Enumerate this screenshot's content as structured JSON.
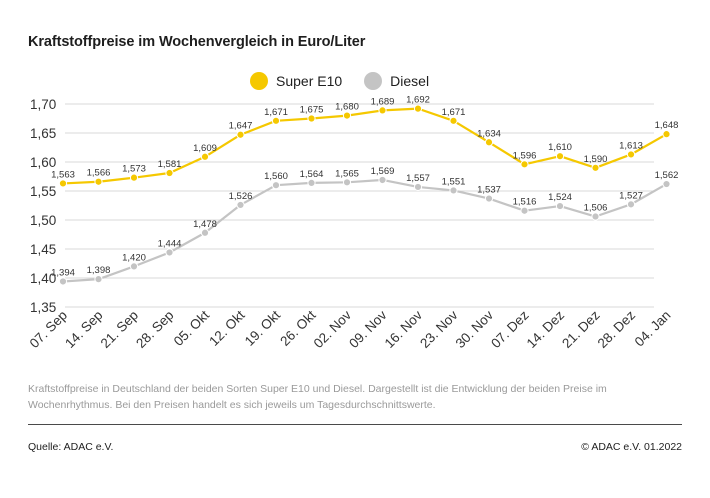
{
  "chart_data": {
    "type": "line",
    "title": "Kraftstoffpreise im Wochenvergleich in Euro/Liter",
    "categories": [
      "07. Sep",
      "14. Sep",
      "21. Sep",
      "28. Sep",
      "05. Okt",
      "12. Okt",
      "19. Okt",
      "26. Okt",
      "02. Nov",
      "09. Nov",
      "16. Nov",
      "23. Nov",
      "30. Nov",
      "07. Dez",
      "14. Dez",
      "21. Dez",
      "28. Dez",
      "04. Jan"
    ],
    "series": [
      {
        "name": "Super E10",
        "color": "#f5c800",
        "values": [
          1.563,
          1.566,
          1.573,
          1.581,
          1.609,
          1.647,
          1.671,
          1.675,
          1.68,
          1.689,
          1.692,
          1.671,
          1.634,
          1.596,
          1.61,
          1.59,
          1.613,
          1.648
        ],
        "labels": [
          "1,563",
          "1,566",
          "1,573",
          "1,581",
          "1,609",
          "1,647",
          "1,671",
          "1,675",
          "1,680",
          "1,689",
          "1,692",
          "1,671",
          "1,634",
          "1,596",
          "1,610",
          "1,590",
          "1,613",
          "1,648"
        ]
      },
      {
        "name": "Diesel",
        "color": "#c4c4c4",
        "values": [
          1.394,
          1.398,
          1.42,
          1.444,
          1.478,
          1.526,
          1.56,
          1.564,
          1.565,
          1.569,
          1.557,
          1.551,
          1.537,
          1.516,
          1.524,
          1.506,
          1.527,
          1.562
        ],
        "labels": [
          "1,394",
          "1,398",
          "1,420",
          "1,444",
          "1,478",
          "1,526",
          "1,560",
          "1,564",
          "1,565",
          "1,569",
          "1,557",
          "1,551",
          "1,537",
          "1,516",
          "1,524",
          "1,506",
          "1,527",
          "1,562"
        ]
      }
    ],
    "yticks": [
      1.7,
      1.65,
      1.6,
      1.55,
      1.5,
      1.45,
      1.4,
      1.35
    ],
    "ytick_labels": [
      "1,70",
      "1,65",
      "1,60",
      "1,55",
      "1,50",
      "1,45",
      "1,40",
      "1,35"
    ],
    "ylim": [
      1.35,
      1.7
    ],
    "grid": true,
    "legend": "top-center"
  },
  "caption": "Kraftstoffpreise in Deutschland der beiden Sorten Super E10 und Diesel. Dargestellt ist die Entwicklung der beiden Preise im Wochenrhythmus. Bei den Preisen handelt es sich jeweils um Tagesdurchschnittswerte.",
  "footer": {
    "source": "Quelle: ADAC e.V.",
    "copyright": "© ADAC e.V. 01.2022"
  }
}
